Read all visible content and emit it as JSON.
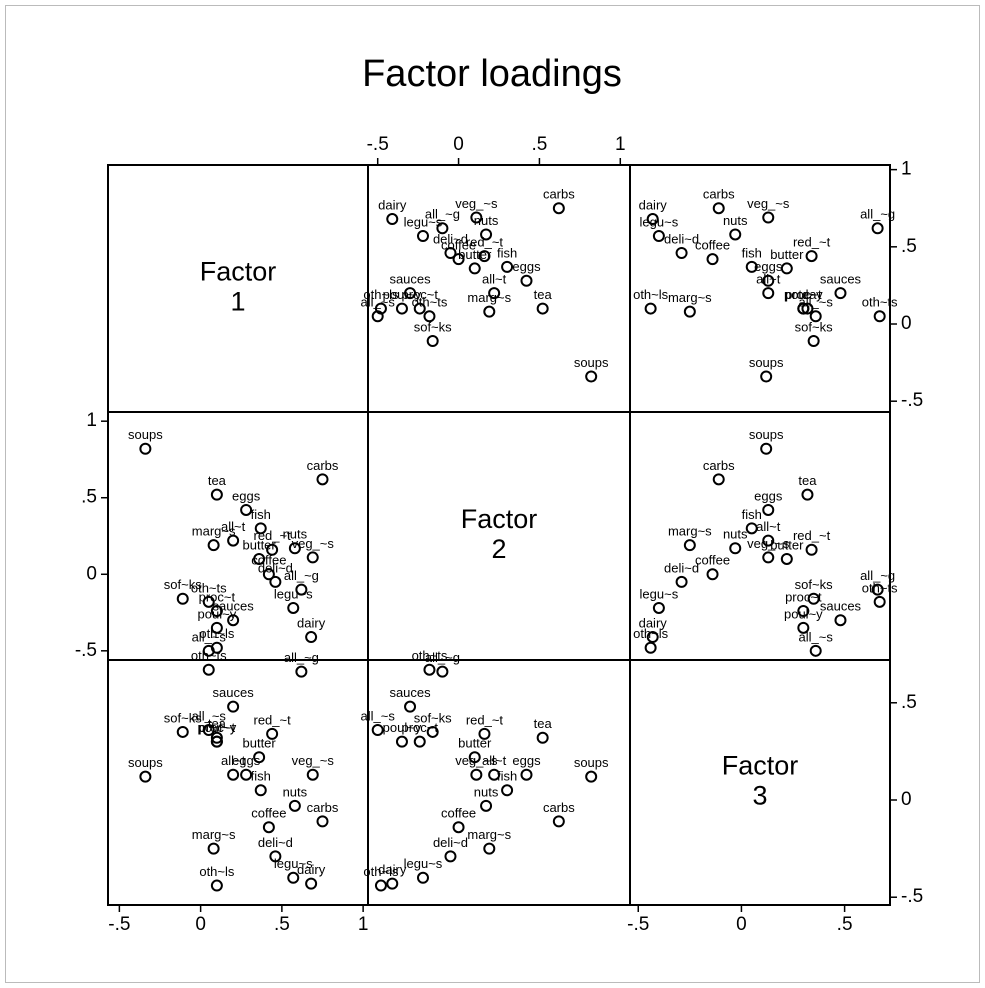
{
  "chart_data": {
    "type": "scatter_matrix",
    "title": "Factor loadings",
    "diagonal_labels": [
      [
        "Factor",
        "1"
      ],
      [
        "Factor",
        "2"
      ],
      [
        "Factor",
        "3"
      ]
    ],
    "axes": [
      {
        "lim": [
          -0.57,
          1.03
        ],
        "ticks": [
          {
            "value": -0.5,
            "label": "-.5"
          },
          0,
          {
            "value": 0.5,
            "label": ".5"
          },
          1
        ]
      },
      {
        "lim": [
          -0.56,
          1.06
        ],
        "ticks": [
          {
            "value": -0.5,
            "label": "-.5"
          },
          0,
          {
            "value": 0.5,
            "label": ".5"
          },
          1
        ]
      },
      {
        "lim": [
          -0.54,
          0.72
        ],
        "ticks": [
          {
            "value": -0.5,
            "label": "-.5"
          },
          0,
          {
            "value": 0.5,
            "label": ".5"
          }
        ]
      }
    ],
    "x_axis_sides": [
      "bottom",
      "top",
      "bottom"
    ],
    "y_axis_sides": [
      "right",
      "left",
      "right"
    ],
    "marker_color": "#000000",
    "points": [
      {
        "label": "dairy",
        "values": [
          0.68,
          -0.41,
          -0.43
        ]
      },
      {
        "label": "legu~s",
        "values": [
          0.57,
          -0.22,
          -0.4
        ]
      },
      {
        "label": "all_~g",
        "values": [
          0.62,
          -0.1,
          0.66
        ]
      },
      {
        "label": "nuts",
        "values": [
          0.58,
          0.17,
          -0.03
        ]
      },
      {
        "label": "veg_~s",
        "values": [
          0.69,
          0.11,
          0.13
        ]
      },
      {
        "label": "carbs",
        "values": [
          0.75,
          0.62,
          -0.11
        ]
      },
      {
        "label": "deli~d",
        "values": [
          0.46,
          -0.05,
          -0.29
        ]
      },
      {
        "label": "coffee",
        "values": [
          0.42,
          0.0,
          -0.14
        ]
      },
      {
        "label": "red_~t",
        "values": [
          0.44,
          0.16,
          0.34
        ]
      },
      {
        "label": "fish",
        "values": [
          0.37,
          0.3,
          0.05
        ]
      },
      {
        "label": "eggs",
        "values": [
          0.28,
          0.42,
          0.13
        ]
      },
      {
        "label": "butter",
        "values": [
          0.36,
          0.1,
          0.22
        ]
      },
      {
        "label": "all~t",
        "values": [
          0.2,
          0.22,
          0.13
        ]
      },
      {
        "label": "sauces",
        "values": [
          0.2,
          -0.3,
          0.48
        ]
      },
      {
        "label": "marg~s",
        "values": [
          0.08,
          0.19,
          -0.25
        ]
      },
      {
        "label": "tea",
        "values": [
          0.1,
          0.52,
          0.32
        ]
      },
      {
        "label": "proc~t",
        "values": [
          0.1,
          -0.24,
          0.3
        ]
      },
      {
        "label": "oth~ts",
        "values": [
          0.05,
          -0.18,
          0.67
        ]
      },
      {
        "label": "poul~y",
        "values": [
          0.1,
          -0.35,
          0.3
        ]
      },
      {
        "label": "sof~ks",
        "values": [
          -0.11,
          -0.16,
          0.35
        ]
      },
      {
        "label": "oth~ls",
        "values": [
          0.1,
          -0.48,
          -0.44
        ]
      },
      {
        "label": "soups",
        "values": [
          -0.34,
          0.82,
          0.12
        ]
      },
      {
        "label": "all_~s",
        "values": [
          0.05,
          -0.5,
          0.36
        ]
      }
    ]
  }
}
